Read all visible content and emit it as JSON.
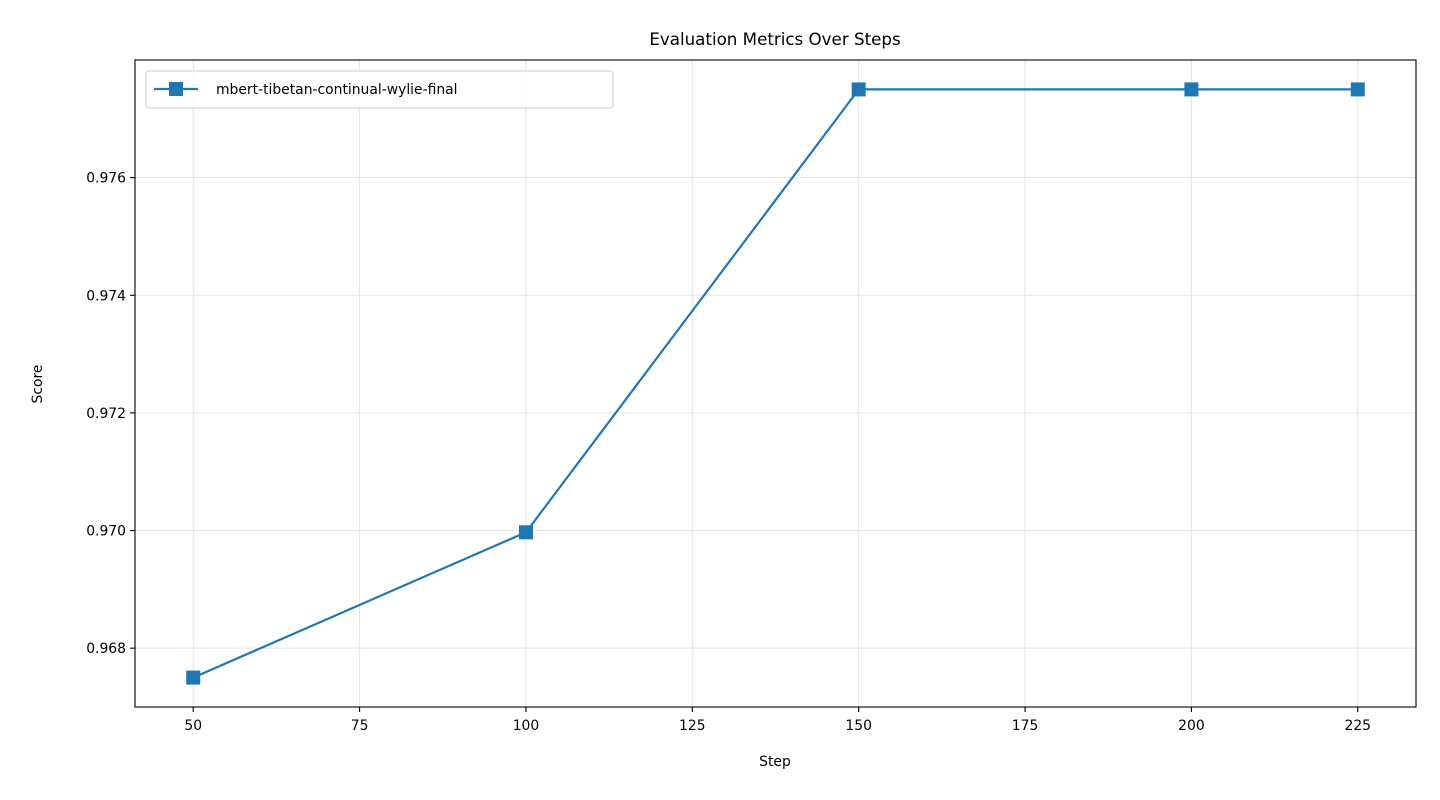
{
  "chart_data": {
    "type": "line",
    "title": "Evaluation Metrics Over Steps",
    "xlabel": "Step",
    "ylabel": "Score",
    "x": [
      50,
      100,
      150,
      200,
      225
    ],
    "series": [
      {
        "name": "mbert-tibetan-continual-wylie-final",
        "values": [
          0.9675,
          0.96997,
          0.9775,
          0.9775,
          0.9775
        ],
        "color": "#1f77b4",
        "marker": "square"
      }
    ],
    "xlim": [
      41.25,
      233.75
    ],
    "ylim": [
      0.967,
      0.978
    ],
    "xticks": [
      50,
      75,
      100,
      125,
      150,
      175,
      200,
      225
    ],
    "yticks": [
      0.968,
      0.97,
      0.972,
      0.974,
      0.976
    ],
    "ytick_labels": [
      "0.968",
      "0.970",
      "0.972",
      "0.974",
      "0.976"
    ],
    "grid": true,
    "legend_position": "upper-left"
  }
}
